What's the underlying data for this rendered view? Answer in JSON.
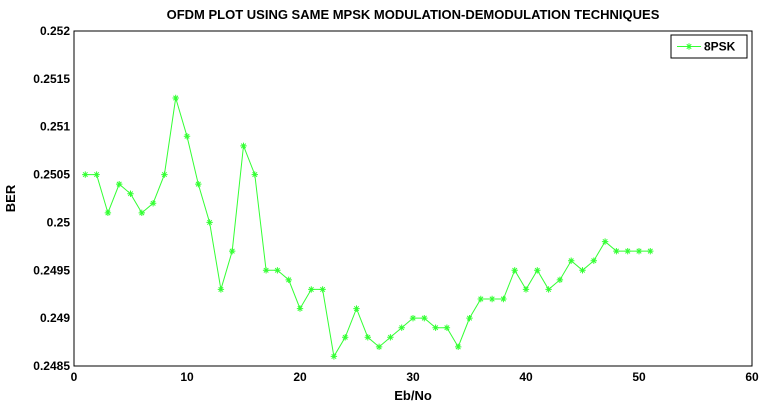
{
  "chart_data": {
    "type": "line",
    "title": "OFDM PLOT USING SAME MPSK MODULATION-DEMODULATION TECHNIQUES",
    "xlabel": "Eb/No",
    "ylabel": "BER",
    "xlim": [
      0,
      60
    ],
    "ylim": [
      0.2485,
      0.252
    ],
    "xticks": [
      "0",
      "10",
      "20",
      "30",
      "40",
      "50",
      "60"
    ],
    "yticks": [
      "0.2485",
      "0.249",
      "0.2495",
      "0.25",
      "0.2505",
      "0.251",
      "0.2515",
      "0.252"
    ],
    "grid": false,
    "legend_position": "top-right",
    "series": [
      {
        "name": "8PSK",
        "color": "#33ff33",
        "marker": "star",
        "x": [
          1,
          2,
          3,
          4,
          5,
          6,
          7,
          8,
          9,
          10,
          11,
          12,
          13,
          14,
          15,
          16,
          17,
          18,
          19,
          20,
          21,
          22,
          23,
          24,
          25,
          26,
          27,
          28,
          29,
          30,
          31,
          32,
          33,
          34,
          35,
          36,
          37,
          38,
          39,
          40,
          41,
          42,
          43,
          44,
          45,
          46,
          47,
          48,
          49,
          50,
          51
        ],
        "y": [
          0.2505,
          0.2505,
          0.2501,
          0.2504,
          0.2503,
          0.2501,
          0.2502,
          0.2505,
          0.2513,
          0.2509,
          0.2504,
          0.25,
          0.2493,
          0.2497,
          0.2508,
          0.2505,
          0.2495,
          0.2495,
          0.2494,
          0.2491,
          0.2493,
          0.2493,
          0.2486,
          0.2488,
          0.2491,
          0.2488,
          0.2487,
          0.2488,
          0.2489,
          0.249,
          0.249,
          0.2489,
          0.2489,
          0.2487,
          0.249,
          0.2492,
          0.2492,
          0.2492,
          0.2495,
          0.2493,
          0.2495,
          0.2493,
          0.2494,
          0.2496,
          0.2495,
          0.2496,
          0.2498,
          0.2497,
          0.2497,
          0.2497,
          0.2497
        ]
      }
    ]
  }
}
